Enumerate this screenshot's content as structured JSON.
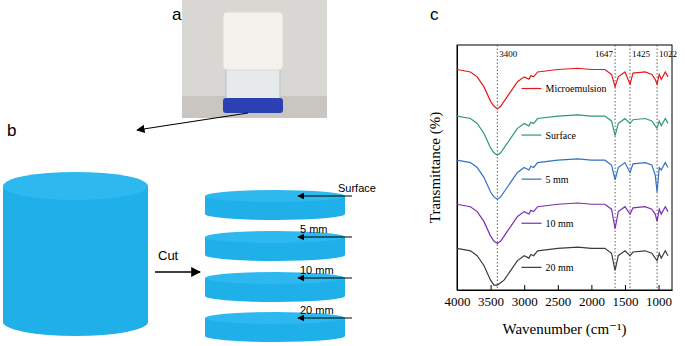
{
  "panels": {
    "a": {
      "label": "a"
    },
    "b": {
      "label": "b",
      "action": "Cut",
      "slices": [
        "Surface",
        "5 mm",
        "10 mm",
        "20 mm"
      ]
    }
  },
  "chart_data": {
    "type": "line",
    "panel_label": "c",
    "xlabel": "Wavenumber (cm⁻¹)",
    "ylabel": "Transmittance (%)",
    "x": [
      4000,
      3800,
      3700,
      3600,
      3500,
      3450,
      3400,
      3350,
      3300,
      3200,
      3100,
      3000,
      2930,
      2900,
      2860,
      2800,
      2500,
      2200,
      2000,
      1800,
      1700,
      1647,
      1600,
      1500,
      1425,
      1380,
      1200,
      1100,
      1050,
      1022,
      990,
      960,
      900,
      860
    ],
    "xlim": [
      4000,
      800
    ],
    "xticks": [
      4000,
      3500,
      3000,
      2500,
      2000,
      1500,
      1000
    ],
    "ylim": [
      0,
      100
    ],
    "tick_labels": "x",
    "grid": false,
    "reference_lines": [
      3400,
      1647,
      1425,
      1022
    ],
    "series": [
      {
        "name": "Microemulsion",
        "color": "#e31a1c",
        "line_style": "solid",
        "values": [
          90,
          89,
          87,
          83,
          77,
          75,
          74,
          75,
          77,
          81,
          85,
          87,
          86,
          87.5,
          87,
          89,
          90,
          90.5,
          90,
          90,
          88,
          83,
          87,
          89,
          84,
          88.5,
          89,
          88,
          86,
          84,
          88,
          86,
          89,
          87
        ]
      },
      {
        "name": "Surface",
        "color": "#2e9b6b",
        "line_style": "solid",
        "values": [
          71,
          70,
          68,
          64,
          58,
          56,
          55,
          56,
          58,
          62,
          66,
          68,
          67,
          68.5,
          68,
          70,
          71,
          71.5,
          71,
          71,
          69,
          63,
          68,
          70,
          68,
          69.5,
          70,
          69,
          67,
          66,
          69,
          67,
          70,
          68
        ]
      },
      {
        "name": "5 mm",
        "color": "#2f72c4",
        "line_style": "solid",
        "values": [
          53,
          52,
          50,
          46,
          40,
          38,
          37,
          38,
          40,
          44,
          48,
          50,
          49,
          50.5,
          50,
          52,
          53,
          53.5,
          53,
          53,
          51,
          45,
          50,
          52,
          48,
          51.5,
          52,
          51,
          47,
          40,
          50,
          49,
          52,
          50
        ]
      },
      {
        "name": "10 mm",
        "color": "#7a2fb0",
        "line_style": "solid",
        "values": [
          35,
          34,
          32,
          28,
          22,
          20,
          19,
          20,
          22,
          26,
          30,
          32,
          31,
          32.5,
          32,
          34,
          35,
          35.5,
          35,
          35,
          33,
          25,
          32,
          34,
          31,
          33.5,
          34,
          33,
          31,
          28,
          33,
          31,
          34,
          32
        ]
      },
      {
        "name": "20 mm",
        "color": "#3c3c3c",
        "line_style": "solid",
        "values": [
          17,
          16,
          14,
          10,
          4,
          2,
          2,
          3,
          4,
          8,
          12,
          14,
          13,
          14.5,
          14,
          16,
          17,
          17.5,
          17,
          17,
          15,
          8,
          14,
          16,
          14,
          15.5,
          16,
          15,
          13,
          12,
          15,
          13,
          16,
          14
        ]
      }
    ]
  }
}
